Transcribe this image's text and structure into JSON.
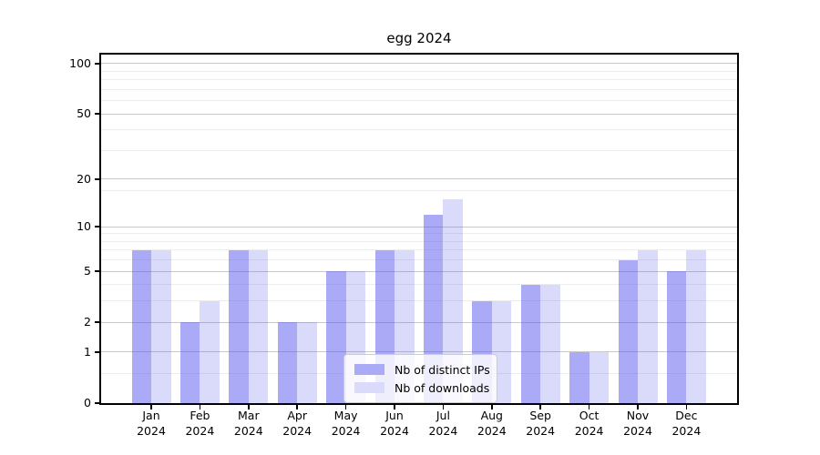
{
  "title": "egg 2024",
  "colors": {
    "bar_distinct_ips": "rgba(85,85,238,0.50)",
    "bar_downloads": "rgba(85,85,238,0.22)",
    "bar_distinct_ips_hex": "#aaaaf6",
    "bar_downloads_hex": "#dadafb",
    "grid_major": "#c8c8c8",
    "grid_minor": "#ececec",
    "spine": "#000000",
    "legend_border": "#cccccc"
  },
  "y_axis": {
    "tick_labels": [
      "100",
      "50",
      "20",
      "10",
      "5",
      "2",
      "1",
      "0"
    ],
    "tick_values": [
      100,
      50,
      20,
      10,
      5,
      2,
      1,
      0
    ]
  },
  "x_axis": {
    "year_line": "2024",
    "months": [
      "Jan",
      "Feb",
      "Mar",
      "Apr",
      "May",
      "Jun",
      "Jul",
      "Aug",
      "Sep",
      "Oct",
      "Nov",
      "Dec"
    ]
  },
  "legend": {
    "items": [
      {
        "label": "Nb of distinct IPs",
        "color_key": "bar_distinct_ips"
      },
      {
        "label": "Nb of downloads",
        "color_key": "bar_downloads"
      }
    ]
  },
  "chart_data": {
    "type": "bar",
    "title": "egg 2024",
    "categories": [
      "Jan 2024",
      "Feb 2024",
      "Mar 2024",
      "Apr 2024",
      "May 2024",
      "Jun 2024",
      "Jul 2024",
      "Aug 2024",
      "Sep 2024",
      "Oct 2024",
      "Nov 2024",
      "Dec 2024"
    ],
    "series": [
      {
        "name": "Nb of distinct IPs",
        "values": [
          7,
          2,
          7,
          2,
          5,
          7,
          12,
          3,
          4,
          1,
          6,
          5
        ]
      },
      {
        "name": "Nb of downloads",
        "values": [
          7,
          3,
          7,
          2,
          5,
          7,
          15,
          3,
          4,
          1,
          7,
          7
        ]
      }
    ],
    "xlabel": "",
    "ylabel": "",
    "yscale": "log1p",
    "y_major_ticks": [
      0,
      1,
      2,
      5,
      10,
      20,
      50,
      100
    ],
    "y_minor_gridlines": [
      0.5,
      3,
      4,
      6,
      7,
      8,
      9,
      17,
      30,
      40,
      60,
      70,
      80,
      90
    ],
    "ylim": [
      0,
      113
    ],
    "grid": "both",
    "legend_position": "lower center"
  }
}
